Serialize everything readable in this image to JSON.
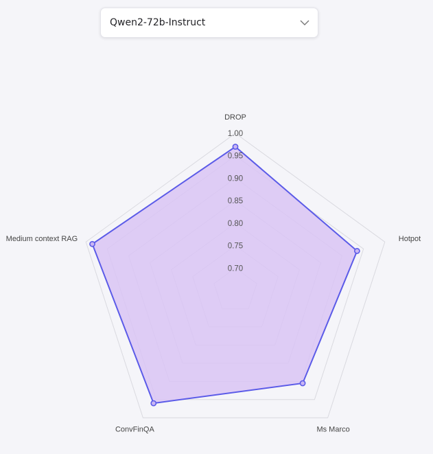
{
  "model_select": {
    "value": "Qwen2-72b-Instruct",
    "icon": "chevron-down-icon"
  },
  "chart_data": {
    "type": "radar",
    "axes": [
      "DROP",
      "Hotpot",
      "Ms Marco",
      "ConvFinQA",
      "Medium context RAG"
    ],
    "series": [
      {
        "values": [
          0.97,
          0.935,
          0.905,
          0.96,
          0.985
        ]
      }
    ],
    "rlim": [
      0.65,
      1.0
    ],
    "ticks": [
      "0.70",
      "0.75",
      "0.80",
      "0.85",
      "0.90",
      "0.95",
      "1.00"
    ],
    "colors": {
      "fill": "#d9c4f5",
      "stroke": "#5b5be8",
      "grid": "#d9d9df"
    }
  }
}
